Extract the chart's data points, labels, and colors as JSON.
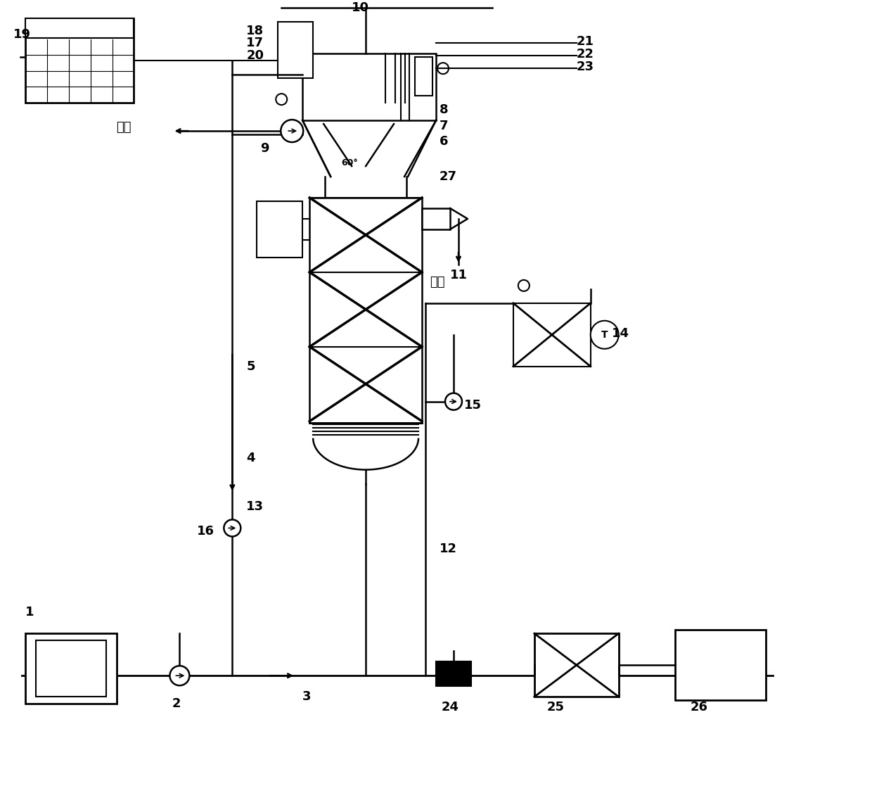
{
  "bg_color": "#ffffff",
  "line_color": "#000000",
  "fig_width": 12.4,
  "fig_height": 11.54,
  "labels": {
    "chu_shui": "出水",
    "pai_ni": "排泥",
    "numbers": [
      "1",
      "2",
      "3",
      "4",
      "5",
      "6",
      "7",
      "8",
      "9",
      "10",
      "11",
      "12",
      "13",
      "14",
      "15",
      "16",
      "17",
      "18",
      "19",
      "20",
      "21",
      "22",
      "23",
      "24",
      "25",
      "26",
      "27"
    ]
  }
}
